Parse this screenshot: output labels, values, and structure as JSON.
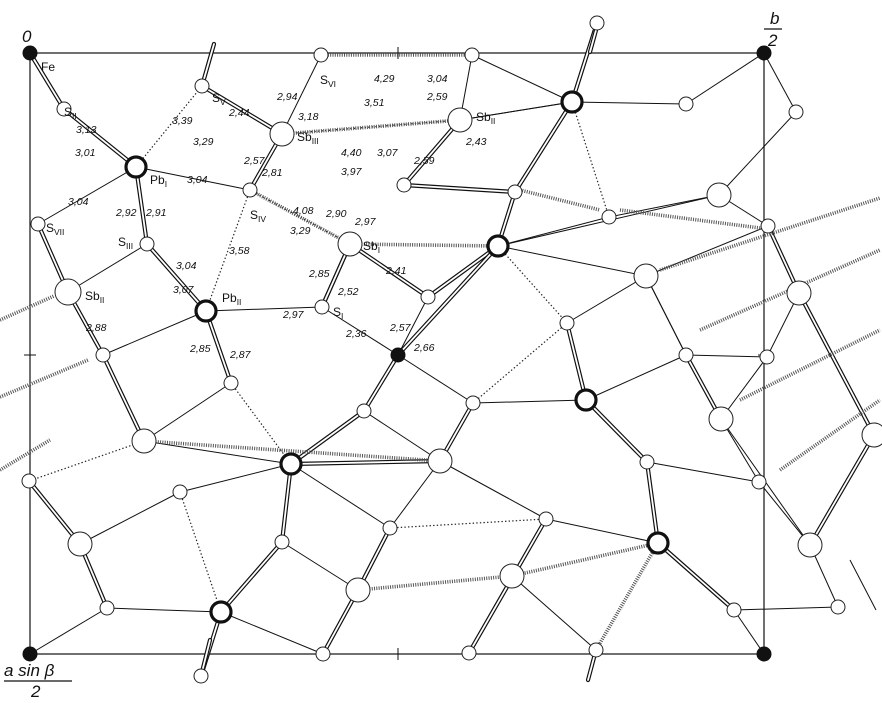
{
  "corner_labels": {
    "origin": "0",
    "b_axis": {
      "num": "b",
      "den": "2"
    },
    "a_axis": {
      "num": "a sin β",
      "den": "2"
    }
  },
  "atom_labels": {
    "fe": {
      "main": "Fe",
      "sub": ""
    },
    "s_ii": {
      "main": "S",
      "sub": "II"
    },
    "s_v": {
      "main": "S",
      "sub": "V"
    },
    "s_vi": {
      "main": "S",
      "sub": "VI"
    },
    "sb_iii": {
      "main": "Sb",
      "sub": "III"
    },
    "sb_ii_top": {
      "main": "Sb",
      "sub": "II"
    },
    "pb_i": {
      "main": "Pb",
      "sub": "I"
    },
    "s_iv": {
      "main": "S",
      "sub": "IV"
    },
    "sb_i": {
      "main": "Sb",
      "sub": "I"
    },
    "s_vii": {
      "main": "S",
      "sub": "VII"
    },
    "s_iii": {
      "main": "S",
      "sub": "III"
    },
    "sb_ii_left": {
      "main": "Sb",
      "sub": "II"
    },
    "pb_ii": {
      "main": "Pb",
      "sub": "II"
    },
    "s_i": {
      "main": "S",
      "sub": "I"
    }
  },
  "distances": [
    "3,13",
    "3,01",
    "3,39",
    "3,29",
    "2,44",
    "2,94",
    "3,18",
    "4,29",
    "3,51",
    "3,04",
    "2,59",
    "2,43",
    "4,40",
    "3,97",
    "3,07",
    "2,59",
    "3,04",
    "2,57",
    "2,81",
    "4,08",
    "3,29",
    "2,90",
    "2,97",
    "3,04",
    "2,92",
    "2,91",
    "3,04",
    "3,07",
    "3,58",
    "2,85",
    "2,52",
    "2,41",
    "2,97",
    "2,88",
    "2,36",
    "2,57",
    "2,66",
    "2,85",
    "2,87"
  ],
  "colors": {
    "ink": "#111111",
    "sb_fill": "#bdbdbd",
    "s_dark_fill": "#6e6e6e",
    "fe_fill": "#111111"
  }
}
